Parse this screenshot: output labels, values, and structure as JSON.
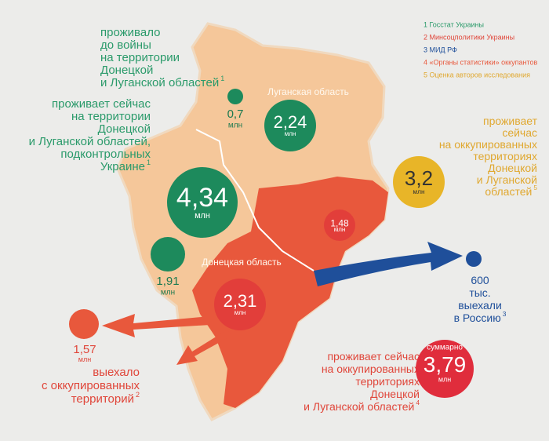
{
  "legend": [
    "1 Госстат Украины",
    "2 Минсоцполитики Украины",
    "3 МИД РФ",
    "4 «Органы статистики» оккупантов",
    "5 Оценка авторов исследования"
  ],
  "regions": {
    "luhansk": "Луганская область",
    "donetsk": "Донецкая область"
  },
  "annotations": {
    "prewar": {
      "lines": [
        "проживало",
        "до войны",
        "на территории",
        "Донецкой",
        "и Луганской областей"
      ],
      "note": "1"
    },
    "controlled": {
      "lines": [
        "проживает сейчас",
        "на территории",
        "Донецкой",
        "и Луганской областей,",
        "подконтрольных",
        "Украине"
      ],
      "note": "1"
    },
    "occupied_estimate": {
      "lines": [
        "проживает",
        "сейчас",
        "на оккупированных",
        "территориях",
        "Донецкой",
        "и Луганской",
        "областей"
      ],
      "note": "5"
    },
    "russia": {
      "lines": [
        "600",
        "тыс.",
        "выехали",
        "в Россию"
      ],
      "note": "3"
    },
    "left_occupied": {
      "lines": [
        "1,57",
        "млн",
        "выехало",
        "с оккупированных",
        "территорий"
      ],
      "note": "2"
    },
    "occupied_official": {
      "lines": [
        "проживает сейчас",
        "на оккупированных",
        "территориях",
        "Донецкой",
        "и Луганской областей"
      ],
      "note": "4"
    }
  },
  "bubbles": [
    {
      "value": "0,7",
      "unit": "млн"
    },
    {
      "value": "2,24",
      "unit": "млн"
    },
    {
      "value": "4,34",
      "unit": "млн"
    },
    {
      "value": "1,91",
      "unit": "млн"
    },
    {
      "value": "2,31",
      "unit": "млн"
    },
    {
      "value": "1,48",
      "unit": "млн"
    },
    {
      "value": "3,2",
      "unit": "млн"
    },
    {
      "value": "3,79",
      "unit": "млн",
      "prefix": "суммарно"
    }
  ]
}
